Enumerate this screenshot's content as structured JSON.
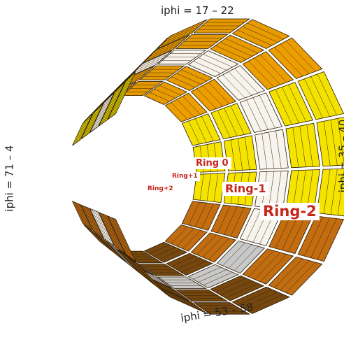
{
  "labels": {
    "top": "iphi = 17 – 22",
    "left": "iphi = 71 – 4",
    "right": "iphi = 35 – 40",
    "bottom": "iphi = 53 – 58"
  },
  "rings": {
    "ring0": "Ring 0",
    "ring_plus1": "Ring+1",
    "ring_plus2": "Ring+2",
    "ring_minus1": "Ring-1",
    "ring_minus2": "Ring-2"
  },
  "colors": {
    "yellow": "#f5e400",
    "orange": "#f0a000",
    "dark_orange": "#c46e10",
    "brown": "#7a4a10",
    "white_ring": "#f7f4ee",
    "grey_ring": "#c8c8c8",
    "label_red": "#c8261b"
  }
}
